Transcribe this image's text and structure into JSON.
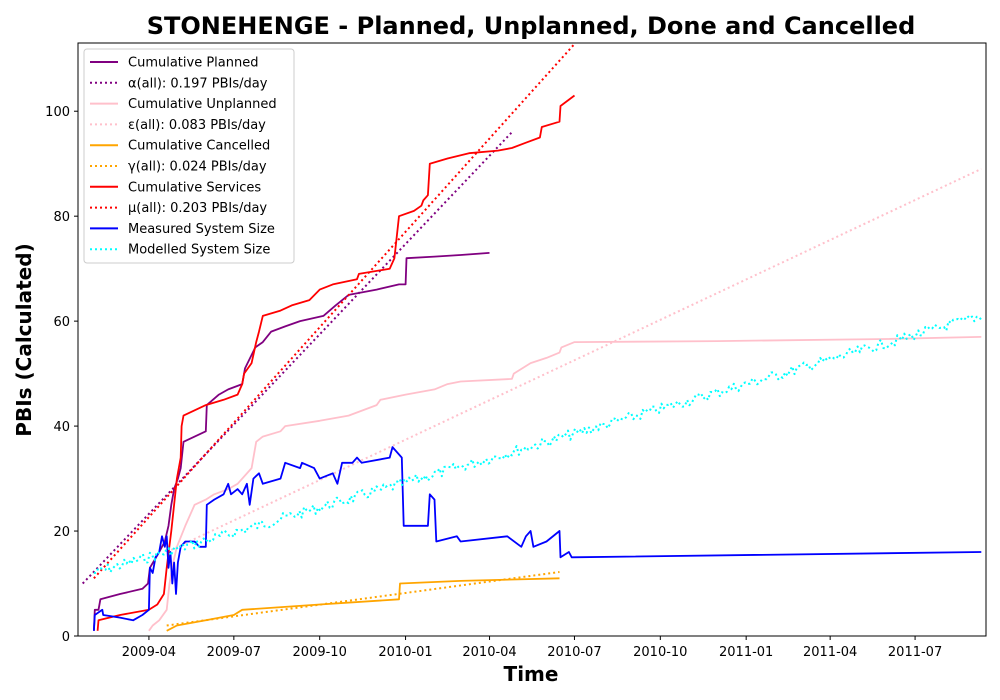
{
  "chart_data": {
    "type": "line",
    "title": "STONEHENGE - Planned, Unplanned, Done  and Cancelled",
    "xlabel": "Time",
    "ylabel": "PBIs (Calculated)",
    "x_range": [
      "2009-01-15",
      "2011-09-15"
    ],
    "ylim": [
      0,
      113
    ],
    "x_ticks": [
      {
        "date": "2009-04-01",
        "label": "2009-04"
      },
      {
        "date": "2009-07-01",
        "label": "2009-07"
      },
      {
        "date": "2009-10-01",
        "label": "2009-10"
      },
      {
        "date": "2010-01-01",
        "label": "2010-01"
      },
      {
        "date": "2010-04-01",
        "label": "2010-04"
      },
      {
        "date": "2010-07-01",
        "label": "2010-07"
      },
      {
        "date": "2010-10-01",
        "label": "2010-10"
      },
      {
        "date": "2011-01-01",
        "label": "2011-01"
      },
      {
        "date": "2011-04-01",
        "label": "2011-04"
      },
      {
        "date": "2011-07-01",
        "label": "2011-07"
      }
    ],
    "y_ticks": [
      0,
      20,
      40,
      60,
      80,
      100
    ],
    "grid": false,
    "legend_position": "top-left",
    "series": [
      {
        "name": "Cumulative Planned",
        "color": "#800080",
        "style": "solid",
        "points": [
          [
            "2009-02-01",
            1
          ],
          [
            "2009-02-02",
            5
          ],
          [
            "2009-02-06",
            5
          ],
          [
            "2009-02-08",
            7
          ],
          [
            "2009-03-01",
            8
          ],
          [
            "2009-03-25",
            9
          ],
          [
            "2009-03-31",
            10
          ],
          [
            "2009-04-02",
            13
          ],
          [
            "2009-04-12",
            16
          ],
          [
            "2009-04-18",
            18
          ],
          [
            "2009-04-22",
            21
          ],
          [
            "2009-04-25",
            25
          ],
          [
            "2009-04-28",
            28
          ],
          [
            "2009-05-02",
            30
          ],
          [
            "2009-05-05",
            32
          ],
          [
            "2009-05-08",
            37
          ],
          [
            "2009-06-01",
            39
          ],
          [
            "2009-06-02",
            44
          ],
          [
            "2009-06-15",
            46
          ],
          [
            "2009-06-25",
            47
          ],
          [
            "2009-07-10",
            48
          ],
          [
            "2009-07-13",
            51
          ],
          [
            "2009-07-24",
            55
          ],
          [
            "2009-08-01",
            56
          ],
          [
            "2009-08-10",
            58
          ],
          [
            "2009-08-25",
            59
          ],
          [
            "2009-09-10",
            60
          ],
          [
            "2009-10-05",
            61
          ],
          [
            "2009-10-18",
            63
          ],
          [
            "2009-11-01",
            65
          ],
          [
            "2009-12-01",
            66
          ],
          [
            "2009-12-25",
            67
          ],
          [
            "2010-01-01",
            67
          ],
          [
            "2010-01-02",
            72
          ],
          [
            "2010-02-01",
            72.3
          ],
          [
            "2010-03-01",
            72.6
          ],
          [
            "2010-04-01",
            73
          ]
        ]
      },
      {
        "name": "α(all): 0.197 PBIs/day",
        "color": "#800080",
        "style": "dotted",
        "points": [
          [
            "2009-01-20",
            10
          ],
          [
            "2010-04-25",
            96
          ]
        ]
      },
      {
        "name": "Cumulative Unplanned",
        "color": "#FFC0CB",
        "style": "solid",
        "points": [
          [
            "2009-04-01",
            1
          ],
          [
            "2009-04-05",
            2
          ],
          [
            "2009-04-12",
            3
          ],
          [
            "2009-04-20",
            5
          ],
          [
            "2009-04-23",
            10
          ],
          [
            "2009-04-27",
            14
          ],
          [
            "2009-05-01",
            17
          ],
          [
            "2009-05-10",
            21
          ],
          [
            "2009-05-20",
            25
          ],
          [
            "2009-06-01",
            26
          ],
          [
            "2009-06-10",
            27
          ],
          [
            "2009-06-25",
            28
          ],
          [
            "2009-07-05",
            29
          ],
          [
            "2009-07-20",
            32
          ],
          [
            "2009-07-25",
            37
          ],
          [
            "2009-08-01",
            38
          ],
          [
            "2009-08-20",
            39
          ],
          [
            "2009-08-25",
            40
          ],
          [
            "2009-10-01",
            41
          ],
          [
            "2009-11-01",
            42
          ],
          [
            "2009-12-01",
            44
          ],
          [
            "2009-12-05",
            45
          ],
          [
            "2010-01-01",
            46
          ],
          [
            "2010-02-01",
            47
          ],
          [
            "2010-02-15",
            48
          ],
          [
            "2010-03-01",
            48.5
          ],
          [
            "2010-04-25",
            49
          ],
          [
            "2010-04-27",
            50
          ],
          [
            "2010-05-15",
            52
          ],
          [
            "2010-06-01",
            53
          ],
          [
            "2010-06-15",
            54
          ],
          [
            "2010-06-17",
            55
          ],
          [
            "2010-07-01",
            56
          ],
          [
            "2010-12-01",
            56.2
          ],
          [
            "2011-06-01",
            56.6
          ],
          [
            "2011-09-10",
            57
          ]
        ]
      },
      {
        "name": "ε(all): 0.083 PBIs/day",
        "color": "#FFC0CB",
        "style": "dotted",
        "points": [
          [
            "2009-04-20",
            16
          ],
          [
            "2011-09-10",
            89
          ]
        ]
      },
      {
        "name": "Cumulative Cancelled",
        "color": "#FFA500",
        "style": "solid",
        "points": [
          [
            "2009-04-20",
            1
          ],
          [
            "2009-05-01",
            2
          ],
          [
            "2009-06-01",
            3
          ],
          [
            "2009-07-01",
            4
          ],
          [
            "2009-07-10",
            5
          ],
          [
            "2009-10-01",
            6
          ],
          [
            "2009-12-25",
            7
          ],
          [
            "2009-12-26",
            10
          ],
          [
            "2010-03-01",
            10.5
          ],
          [
            "2010-06-15",
            11
          ]
        ]
      },
      {
        "name": "γ(all): 0.024 PBIs/day",
        "color": "#FFA500",
        "style": "dotted",
        "points": [
          [
            "2009-04-20",
            2
          ],
          [
            "2010-06-15",
            12.2
          ]
        ]
      },
      {
        "name": "Cumulative Services",
        "color": "#FF0000",
        "style": "solid",
        "points": [
          [
            "2009-02-05",
            1
          ],
          [
            "2009-02-06",
            3
          ],
          [
            "2009-03-01",
            4
          ],
          [
            "2009-04-01",
            5
          ],
          [
            "2009-04-10",
            6
          ],
          [
            "2009-04-17",
            8
          ],
          [
            "2009-04-20",
            13
          ],
          [
            "2009-04-25",
            20
          ],
          [
            "2009-04-28",
            25
          ],
          [
            "2009-05-01",
            30
          ],
          [
            "2009-05-05",
            34
          ],
          [
            "2009-05-06",
            40
          ],
          [
            "2009-05-08",
            42
          ],
          [
            "2009-06-01",
            44
          ],
          [
            "2009-06-20",
            45
          ],
          [
            "2009-07-05",
            46
          ],
          [
            "2009-07-10",
            48
          ],
          [
            "2009-07-12",
            50
          ],
          [
            "2009-07-20",
            52
          ],
          [
            "2009-07-25",
            56
          ],
          [
            "2009-07-28",
            58
          ],
          [
            "2009-08-01",
            61
          ],
          [
            "2009-08-20",
            62
          ],
          [
            "2009-09-01",
            63
          ],
          [
            "2009-09-20",
            64
          ],
          [
            "2009-10-01",
            66
          ],
          [
            "2009-10-15",
            67
          ],
          [
            "2009-11-10",
            68
          ],
          [
            "2009-11-12",
            69
          ],
          [
            "2009-12-15",
            70
          ],
          [
            "2009-12-20",
            72
          ],
          [
            "2009-12-25",
            80
          ],
          [
            "2010-01-10",
            81
          ],
          [
            "2010-01-18",
            82
          ],
          [
            "2010-01-20",
            83
          ],
          [
            "2010-01-25",
            84
          ],
          [
            "2010-01-27",
            90
          ],
          [
            "2010-02-15",
            91
          ],
          [
            "2010-03-10",
            92
          ],
          [
            "2010-04-10",
            92.5
          ],
          [
            "2010-04-25",
            93
          ],
          [
            "2010-05-10",
            94
          ],
          [
            "2010-05-25",
            95
          ],
          [
            "2010-05-27",
            97
          ],
          [
            "2010-06-15",
            98
          ],
          [
            "2010-06-16",
            101
          ],
          [
            "2010-07-01",
            103
          ]
        ]
      },
      {
        "name": "μ(all): 0.203 PBIs/day",
        "color": "#FF0000",
        "style": "dotted",
        "points": [
          [
            "2009-02-01",
            11
          ],
          [
            "2010-07-02",
            113
          ]
        ]
      },
      {
        "name": "Measured System Size",
        "color": "#0000FF",
        "style": "solid",
        "points": [
          [
            "2009-02-01",
            1
          ],
          [
            "2009-02-02",
            4
          ],
          [
            "2009-02-10",
            5
          ],
          [
            "2009-02-11",
            4
          ],
          [
            "2009-03-01",
            3.5
          ],
          [
            "2009-03-15",
            3
          ],
          [
            "2009-03-25",
            4
          ],
          [
            "2009-04-01",
            5
          ],
          [
            "2009-04-02",
            13
          ],
          [
            "2009-04-05",
            12
          ],
          [
            "2009-04-08",
            15
          ],
          [
            "2009-04-12",
            16
          ],
          [
            "2009-04-15",
            19
          ],
          [
            "2009-04-18",
            17
          ],
          [
            "2009-04-20",
            19
          ],
          [
            "2009-04-22",
            13
          ],
          [
            "2009-04-24",
            16
          ],
          [
            "2009-04-26",
            10
          ],
          [
            "2009-04-28",
            14
          ],
          [
            "2009-04-30",
            8
          ],
          [
            "2009-05-02",
            14
          ],
          [
            "2009-05-05",
            17
          ],
          [
            "2009-05-10",
            18
          ],
          [
            "2009-05-20",
            18
          ],
          [
            "2009-05-25",
            17
          ],
          [
            "2009-06-01",
            17
          ],
          [
            "2009-06-02",
            25
          ],
          [
            "2009-06-10",
            26
          ],
          [
            "2009-06-20",
            27
          ],
          [
            "2009-06-25",
            29
          ],
          [
            "2009-06-28",
            27
          ],
          [
            "2009-07-05",
            28
          ],
          [
            "2009-07-10",
            27
          ],
          [
            "2009-07-15",
            29
          ],
          [
            "2009-07-18",
            25
          ],
          [
            "2009-07-22",
            30
          ],
          [
            "2009-07-28",
            31
          ],
          [
            "2009-08-01",
            29
          ],
          [
            "2009-08-20",
            30
          ],
          [
            "2009-08-25",
            33
          ],
          [
            "2009-09-10",
            32
          ],
          [
            "2009-09-12",
            33
          ],
          [
            "2009-09-25",
            32
          ],
          [
            "2009-10-01",
            30
          ],
          [
            "2009-10-15",
            31
          ],
          [
            "2009-10-20",
            29
          ],
          [
            "2009-10-25",
            33
          ],
          [
            "2009-11-05",
            33
          ],
          [
            "2009-11-10",
            34
          ],
          [
            "2009-11-15",
            33
          ],
          [
            "2009-12-15",
            34
          ],
          [
            "2009-12-18",
            36
          ],
          [
            "2009-12-28",
            34
          ],
          [
            "2009-12-30",
            21
          ],
          [
            "2010-01-25",
            21
          ],
          [
            "2010-01-27",
            27
          ],
          [
            "2010-02-01",
            26
          ],
          [
            "2010-02-03",
            18
          ],
          [
            "2010-02-25",
            19
          ],
          [
            "2010-03-01",
            18
          ],
          [
            "2010-04-20",
            19
          ],
          [
            "2010-05-05",
            17
          ],
          [
            "2010-05-10",
            19
          ],
          [
            "2010-05-15",
            20
          ],
          [
            "2010-05-18",
            17
          ],
          [
            "2010-06-01",
            18
          ],
          [
            "2010-06-15",
            20
          ],
          [
            "2010-06-16",
            15
          ],
          [
            "2010-06-25",
            16
          ],
          [
            "2010-06-28",
            15
          ],
          [
            "2011-09-10",
            16
          ]
        ]
      },
      {
        "name": "Modelled System Size",
        "color": "#00FFFF",
        "style": "dotted",
        "jitter": 1.0,
        "points": [
          [
            "2009-02-01",
            12
          ],
          [
            "2011-09-10",
            61
          ]
        ]
      }
    ]
  }
}
